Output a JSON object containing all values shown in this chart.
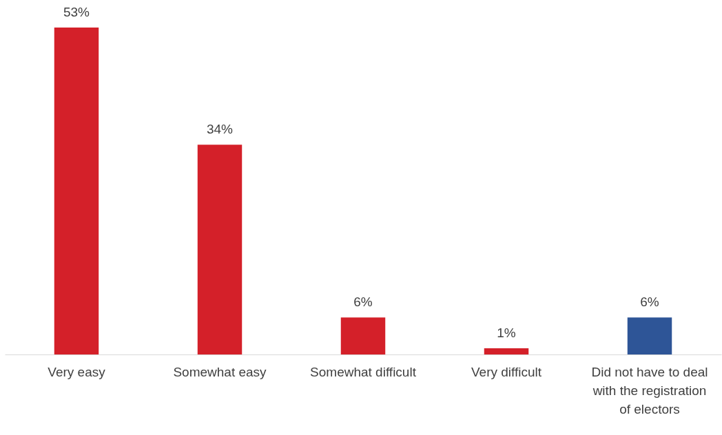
{
  "chart_data": {
    "type": "bar",
    "categories": [
      "Very easy",
      "Somewhat easy",
      "Somewhat difficult",
      "Very difficult",
      "Did not have to deal with the registration of electors"
    ],
    "values": [
      53,
      34,
      6,
      1,
      6
    ],
    "colors": [
      "#d42029",
      "#d42029",
      "#d42029",
      "#d42029",
      "#2e5597"
    ],
    "value_labels": [
      "53%",
      "34%",
      "6%",
      "1%",
      "6%"
    ],
    "tick_labels": "x",
    "grid": false
  }
}
